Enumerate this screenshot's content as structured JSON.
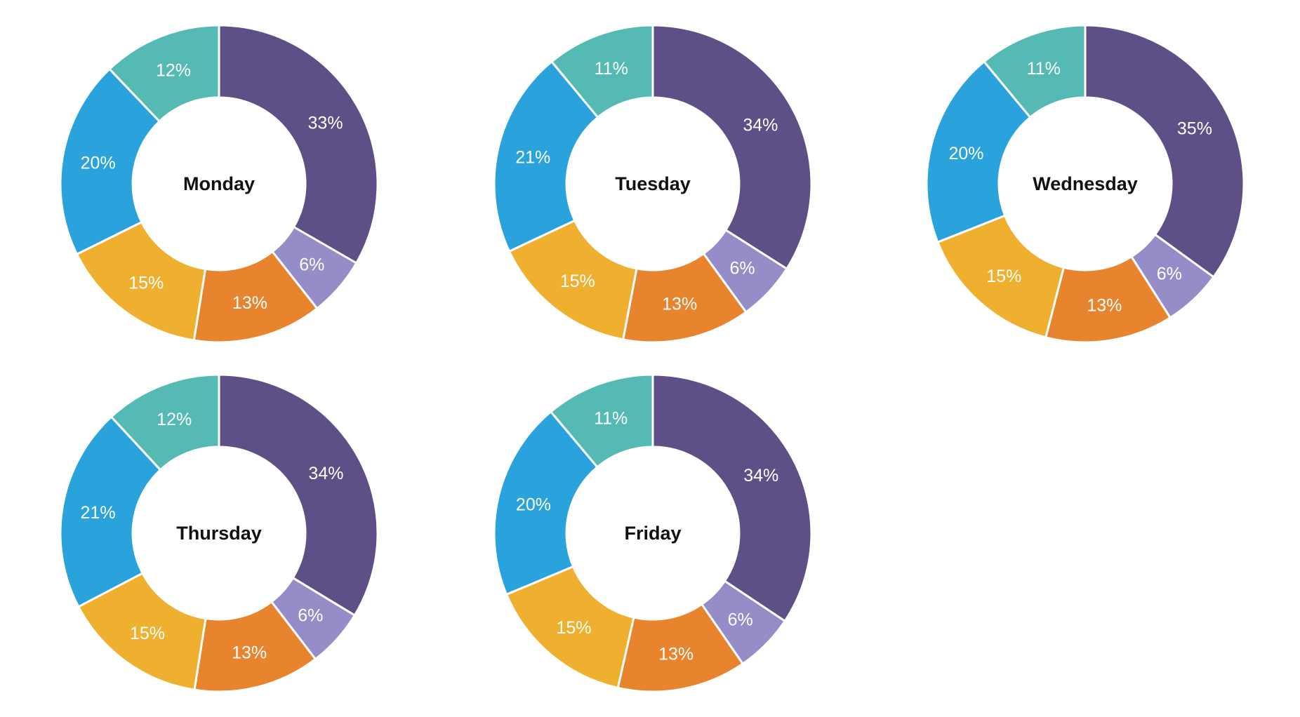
{
  "page": {
    "background_color": "#ffffff"
  },
  "palette": [
    "#5E5086",
    "#968CC8",
    "#E8832E",
    "#F0B02F",
    "#2AA2DC",
    "#55BAB4"
  ],
  "donut": {
    "outer_radius": 226,
    "inner_radius": 123,
    "label_radius": 175,
    "slice_border_color": "#ffffff",
    "slice_border_width": 3,
    "label_color": "#ffffff",
    "title_color": "#111111"
  },
  "chart_data": [
    {
      "type": "pie",
      "variant": "donut",
      "title": "Monday",
      "values": [
        33,
        6,
        13,
        15,
        20,
        12
      ],
      "labels": [
        "33%",
        "6%",
        "13%",
        "15%",
        "20%",
        "12%"
      ],
      "start_angle_deg": 0,
      "direction": "clockwise",
      "legend": "none"
    },
    {
      "type": "pie",
      "variant": "donut",
      "title": "Tuesday",
      "values": [
        34,
        6,
        13,
        15,
        21,
        11
      ],
      "labels": [
        "34%",
        "6%",
        "13%",
        "15%",
        "21%",
        "11%"
      ],
      "start_angle_deg": 0,
      "direction": "clockwise",
      "legend": "none"
    },
    {
      "type": "pie",
      "variant": "donut",
      "title": "Wednesday",
      "values": [
        35,
        6,
        13,
        15,
        20,
        11
      ],
      "labels": [
        "35%",
        "6%",
        "13%",
        "15%",
        "20%",
        "11%"
      ],
      "start_angle_deg": 0,
      "direction": "clockwise",
      "legend": "none"
    },
    {
      "type": "pie",
      "variant": "donut",
      "title": "Thursday",
      "values": [
        34,
        6,
        13,
        15,
        21,
        12
      ],
      "labels": [
        "34%",
        "6%",
        "13%",
        "15%",
        "21%",
        "12%"
      ],
      "start_angle_deg": 0,
      "direction": "clockwise",
      "legend": "none"
    },
    {
      "type": "pie",
      "variant": "donut",
      "title": "Friday",
      "values": [
        34,
        6,
        13,
        15,
        20,
        11
      ],
      "labels": [
        "34%",
        "6%",
        "13%",
        "15%",
        "20%",
        "11%"
      ],
      "start_angle_deg": 0,
      "direction": "clockwise",
      "legend": "none"
    }
  ]
}
